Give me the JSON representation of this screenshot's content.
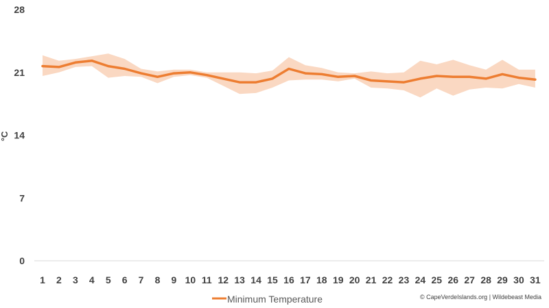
{
  "chart_data": {
    "type": "line",
    "xlabel": "",
    "ylabel": "°C",
    "ylim": [
      0,
      28
    ],
    "yticks": [
      "0",
      "7",
      "14",
      "21",
      "28"
    ],
    "categories": [
      "1",
      "2",
      "3",
      "4",
      "5",
      "6",
      "7",
      "8",
      "9",
      "10",
      "11",
      "12",
      "13",
      "14",
      "15",
      "16",
      "17",
      "18",
      "19",
      "20",
      "21",
      "22",
      "23",
      "24",
      "25",
      "26",
      "27",
      "28",
      "29",
      "30",
      "31"
    ],
    "series": [
      {
        "name": "Minimum Temperature",
        "color": "#ED7D31",
        "values": [
          21.7,
          21.6,
          22.1,
          22.3,
          21.7,
          21.4,
          20.9,
          20.5,
          20.9,
          21.0,
          20.7,
          20.3,
          19.9,
          19.9,
          20.3,
          21.4,
          20.9,
          20.8,
          20.5,
          20.6,
          20.1,
          20.0,
          19.9,
          20.3,
          20.6,
          20.5,
          20.5,
          20.3,
          20.8,
          20.4,
          20.2
        ],
        "range_upper": [
          22.9,
          22.3,
          22.5,
          22.8,
          23.1,
          22.5,
          21.4,
          21.1,
          21.3,
          21.3,
          21.0,
          21.0,
          21.0,
          20.9,
          21.2,
          22.7,
          21.8,
          21.5,
          21.0,
          20.9,
          21.1,
          20.9,
          21.0,
          22.3,
          21.9,
          22.4,
          21.8,
          21.3,
          22.4,
          21.3,
          21.3
        ],
        "range_lower": [
          20.6,
          21.0,
          21.6,
          21.7,
          20.4,
          20.6,
          20.5,
          19.8,
          20.5,
          20.7,
          20.4,
          19.5,
          18.6,
          18.7,
          19.3,
          20.1,
          20.2,
          20.2,
          20.0,
          20.3,
          19.3,
          19.2,
          19.0,
          18.2,
          19.2,
          18.4,
          19.1,
          19.3,
          19.2,
          19.7,
          19.3
        ],
        "band_color": "#F8CBAD"
      }
    ],
    "grid": false,
    "legend_position": "bottom-left",
    "credit": "© CapeVerdeIslands.org | Wildebeast Media"
  }
}
